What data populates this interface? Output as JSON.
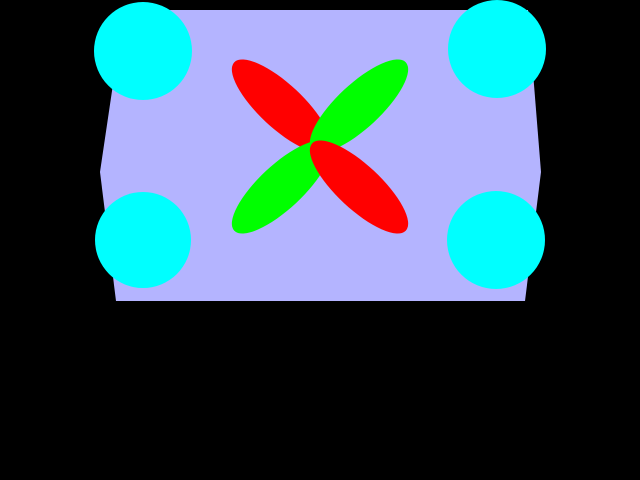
{
  "colors": {
    "background": "#000000",
    "panel": "#b4b4ff",
    "corner_circle": "#00ffff",
    "petal_red": "#ff0000",
    "petal_green": "#00ff00"
  },
  "shapes": {
    "panel": "lavender-panel",
    "corner_circles": [
      "top-left",
      "top-right",
      "bottom-left",
      "bottom-right"
    ],
    "petals": [
      "upper-left-red",
      "upper-right-green",
      "lower-left-green",
      "lower-right-red"
    ]
  }
}
